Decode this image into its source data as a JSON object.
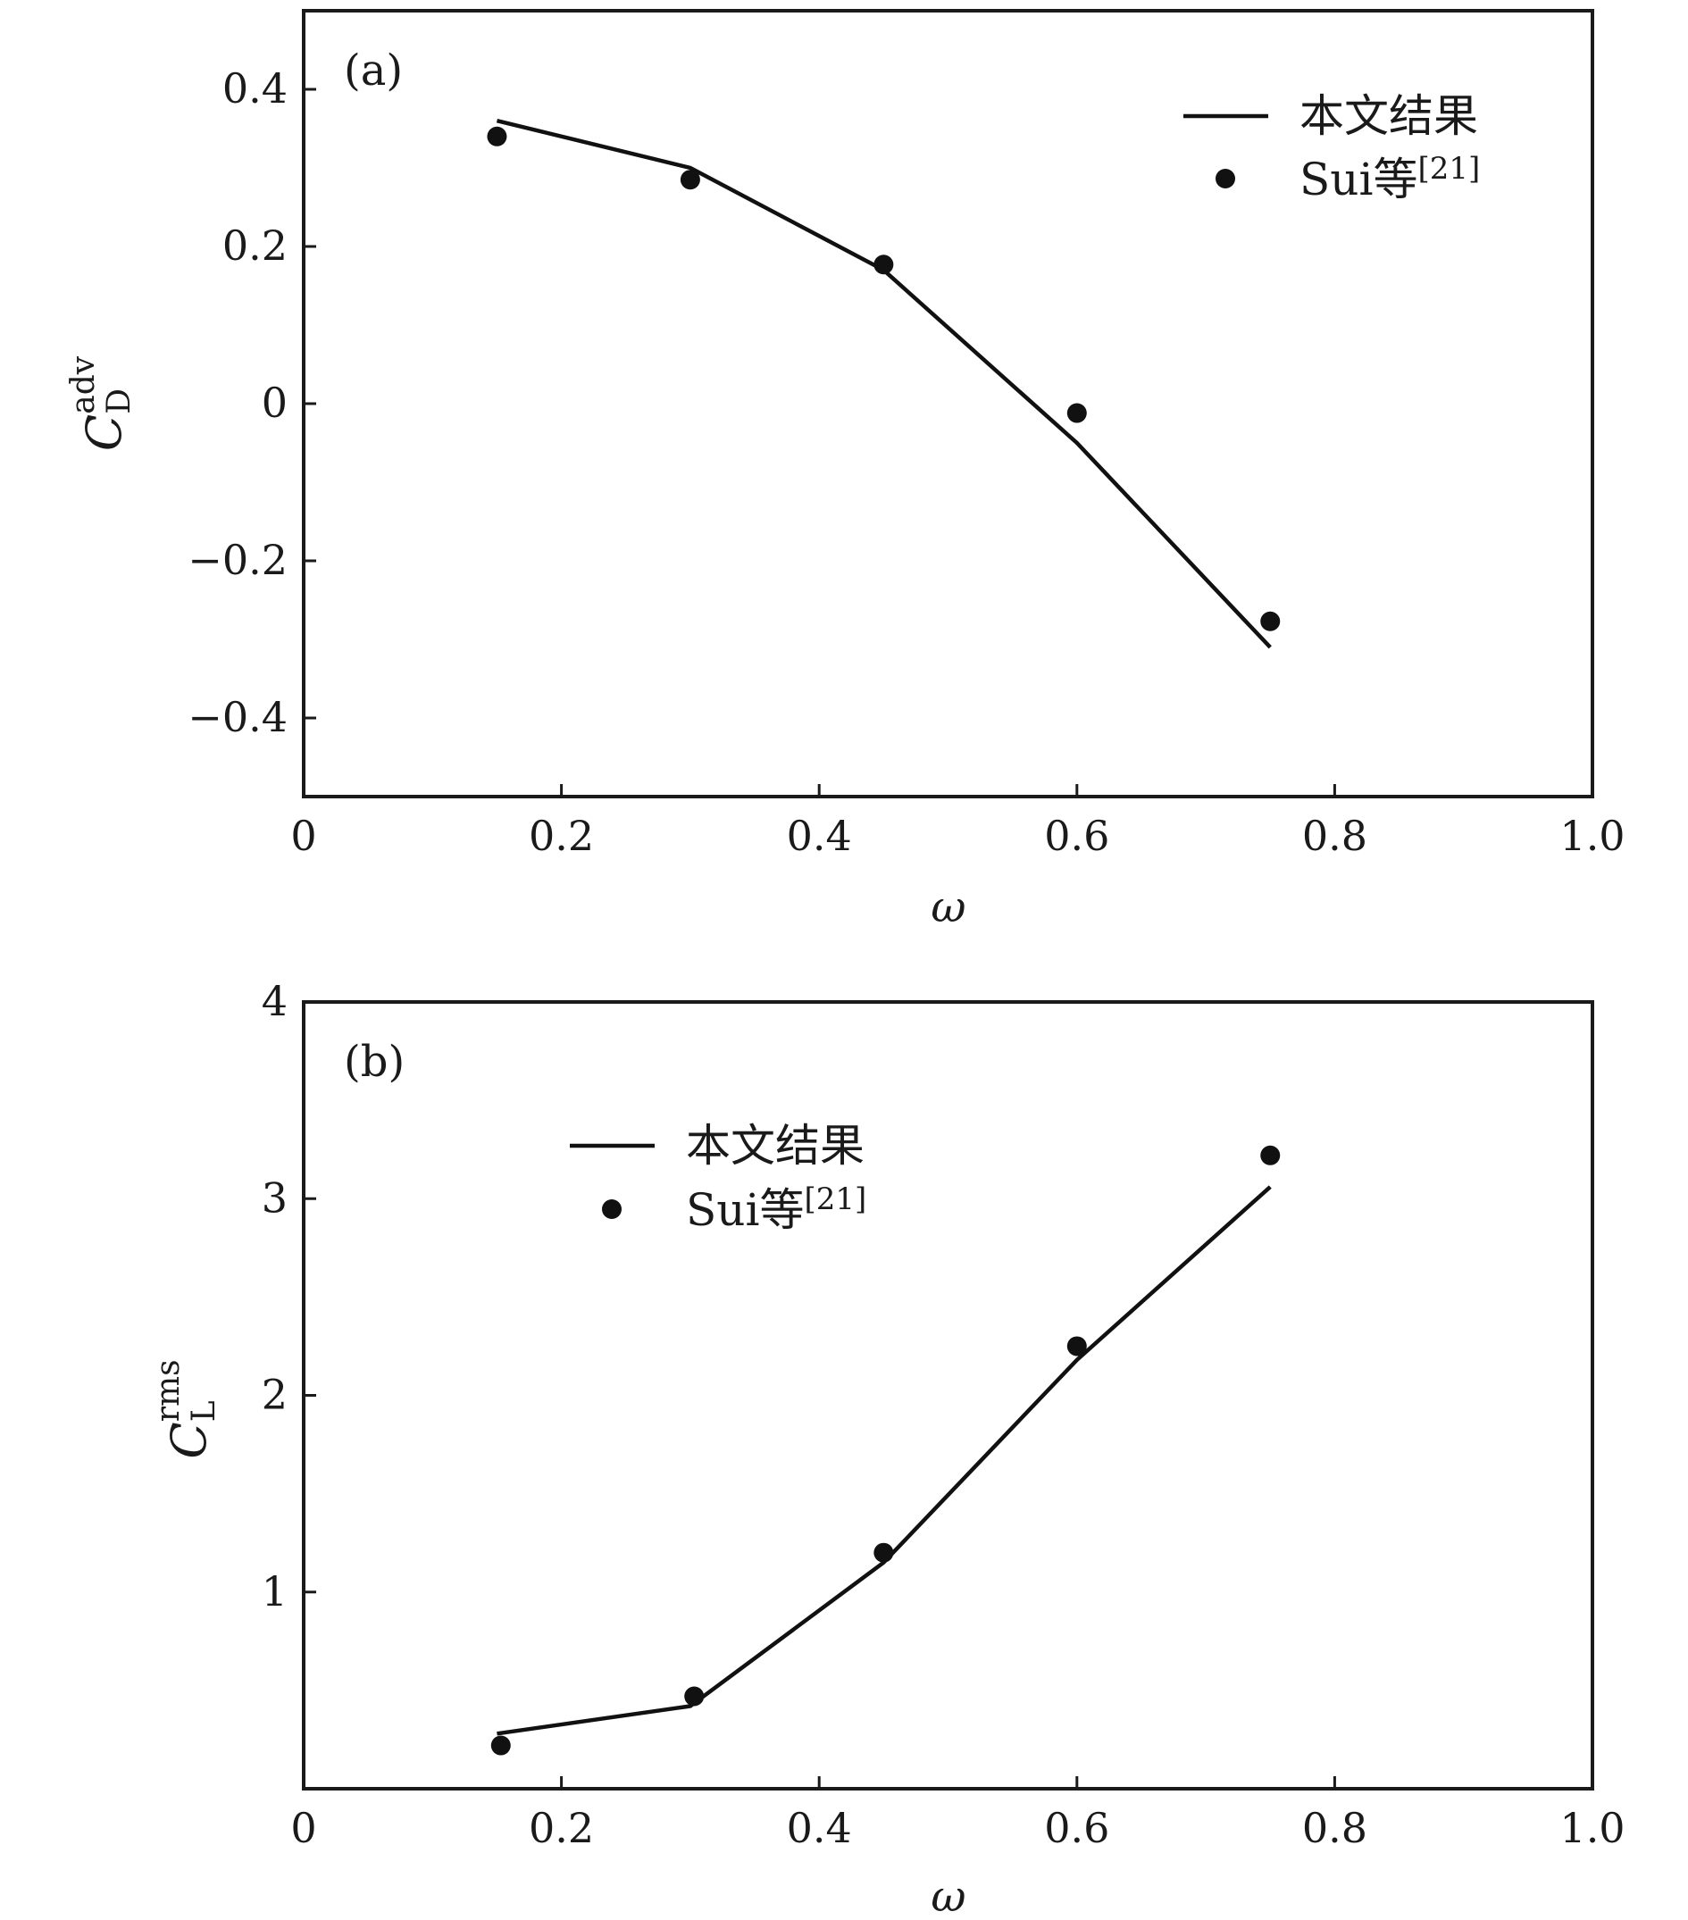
{
  "chart_data": [
    {
      "type": "line",
      "panel_label": "(a)",
      "xlabel": "ω",
      "ylabel": {
        "base": "C",
        "sub": "D",
        "sup": "adv"
      },
      "xlim": [
        0,
        1.0
      ],
      "ylim": [
        -0.5,
        0.5
      ],
      "xticks": [
        {
          "v": 0,
          "label": "0"
        },
        {
          "v": 0.2,
          "label": "0.2"
        },
        {
          "v": 0.4,
          "label": "0.4"
        },
        {
          "v": 0.6,
          "label": "0.6"
        },
        {
          "v": 0.8,
          "label": "0.8"
        },
        {
          "v": 1.0,
          "label": "1.0"
        }
      ],
      "yticks": [
        {
          "v": 0.4,
          "label": "0.4"
        },
        {
          "v": 0.2,
          "label": "0.2"
        },
        {
          "v": 0,
          "label": "0"
        },
        {
          "v": -0.2,
          "label": "−0.2"
        },
        {
          "v": -0.4,
          "label": "−0.4"
        }
      ],
      "legend": {
        "placement": "top-right",
        "line_label": "本文结果",
        "points_label": "Sui等",
        "points_ref": "[21]"
      },
      "series": [
        {
          "name": "本文结果",
          "kind": "line",
          "x": [
            0.15,
            0.3,
            0.45,
            0.6,
            0.75
          ],
          "y": [
            0.36,
            0.3,
            0.17,
            -0.05,
            -0.31
          ]
        },
        {
          "name": "Sui等[21]",
          "kind": "scatter",
          "x": [
            0.15,
            0.3,
            0.45,
            0.6,
            0.75
          ],
          "y": [
            0.34,
            0.285,
            0.177,
            -0.012,
            -0.277
          ]
        }
      ]
    },
    {
      "type": "line",
      "panel_label": "(b)",
      "xlabel": "ω",
      "ylabel": {
        "base": "C",
        "sub": "L",
        "sup": "rms"
      },
      "xlim": [
        0,
        1.0
      ],
      "ylim": [
        0,
        4
      ],
      "xticks": [
        {
          "v": 0,
          "label": "0"
        },
        {
          "v": 0.2,
          "label": "0.2"
        },
        {
          "v": 0.4,
          "label": "0.4"
        },
        {
          "v": 0.6,
          "label": "0.6"
        },
        {
          "v": 0.8,
          "label": "0.8"
        },
        {
          "v": 1.0,
          "label": "1.0"
        }
      ],
      "yticks": [
        {
          "v": 4,
          "label": "4"
        },
        {
          "v": 3,
          "label": "3"
        },
        {
          "v": 2,
          "label": "2"
        },
        {
          "v": 1,
          "label": "1"
        }
      ],
      "ytick_marks": [
        4,
        3,
        2,
        1
      ],
      "legend": {
        "placement": "top-left",
        "line_label": "本文结果",
        "points_label": "Sui等",
        "points_ref": "[21]"
      },
      "series": [
        {
          "name": "本文结果",
          "kind": "line",
          "x": [
            0.15,
            0.3,
            0.45,
            0.6,
            0.75
          ],
          "y": [
            0.28,
            0.42,
            1.15,
            2.18,
            3.06
          ]
        },
        {
          "name": "Sui等[21]",
          "kind": "scatter",
          "x": [
            0.153,
            0.303,
            0.45,
            0.6,
            0.75
          ],
          "y": [
            0.22,
            0.47,
            1.2,
            2.25,
            3.22
          ]
        }
      ]
    }
  ]
}
